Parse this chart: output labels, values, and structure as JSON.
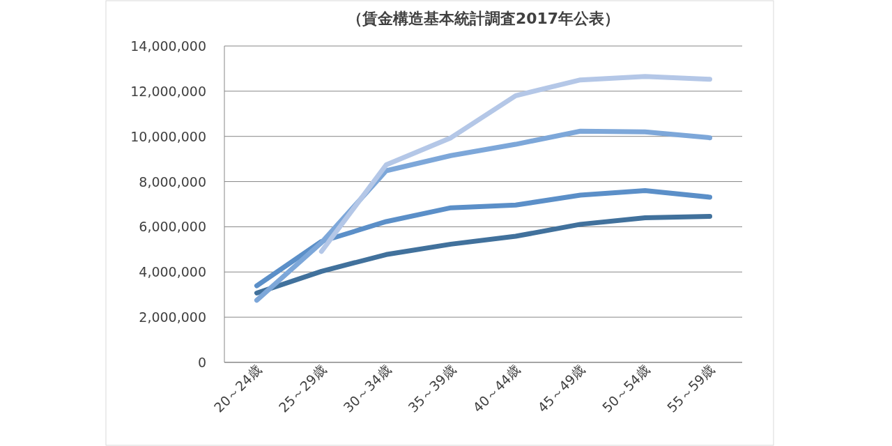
{
  "chart_data": {
    "type": "line",
    "title": "（賃金構造基本統計調査2017年公表）",
    "categories": [
      "20～24歳",
      "25～29歳",
      "30～34歳",
      "35～39歳",
      "40～44歳",
      "45～49歳",
      "50～54歳",
      "55～59歳"
    ],
    "series": [
      {
        "color": "#41719c",
        "values": [
          3070000,
          4030000,
          4770000,
          5230000,
          5580000,
          6110000,
          6400000,
          6460000
        ]
      },
      {
        "color": "#5b8fc8",
        "values": [
          3390000,
          5350000,
          6230000,
          6840000,
          6960000,
          7400000,
          7600000,
          7310000
        ]
      },
      {
        "color": "#7da7d9",
        "values": [
          2750000,
          5300000,
          8480000,
          9150000,
          9650000,
          10230000,
          10200000,
          9940000
        ]
      },
      {
        "color": "#b4c7e7",
        "values": [
          null,
          4910000,
          8740000,
          9940000,
          11800000,
          12500000,
          12650000,
          12530000
        ]
      }
    ],
    "ylim": [
      0,
      14000000
    ],
    "yticks": [
      0,
      {
        "value": 2000000,
        "label": "2,000,000"
      },
      {
        "value": 4000000,
        "label": "4,000,000"
      },
      {
        "value": 6000000,
        "label": "6,000,000"
      },
      {
        "value": 8000000,
        "label": "8,000,000"
      },
      {
        "value": 10000000,
        "label": "10,000,000"
      },
      {
        "value": 12000000,
        "label": "12,000,000"
      },
      {
        "value": 14000000,
        "label": "14,000,000"
      }
    ],
    "grid": "y",
    "marker": "none",
    "line_style": "solid"
  }
}
